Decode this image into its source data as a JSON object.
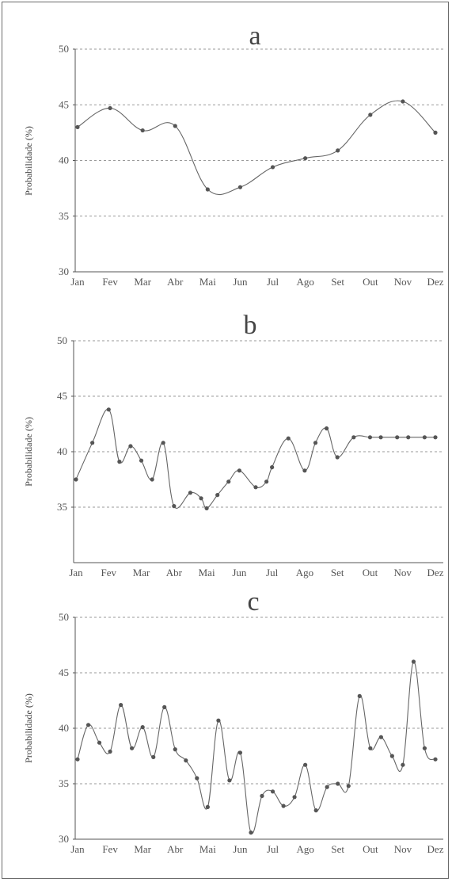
{
  "chart_data": [
    {
      "type": "line",
      "title": "a",
      "ylabel": "Probabilidade (%)",
      "xlabel": "",
      "ylim": [
        30,
        50
      ],
      "yticks": [
        30,
        35,
        40,
        45,
        50
      ],
      "grid": "horizontal dashed",
      "categories": [
        "Jan",
        "Fev",
        "Mar",
        "Abr",
        "Mai",
        "Jun",
        "Jul",
        "Ago",
        "Set",
        "Out",
        "Nov",
        "Dez"
      ],
      "series": [
        {
          "x": [
            0,
            1,
            2,
            3,
            4,
            5,
            6,
            7,
            8,
            9,
            10,
            11
          ],
          "values": [
            43.0,
            44.7,
            42.7,
            43.1,
            37.4,
            37.6,
            39.4,
            40.2,
            40.9,
            44.1,
            45.3,
            42.5
          ]
        }
      ]
    },
    {
      "type": "line",
      "title": "b",
      "ylabel": "Probabilidade (%)",
      "xlabel": "",
      "ylim": [
        30,
        50
      ],
      "yticks": [
        35,
        40,
        45,
        50
      ],
      "grid": "horizontal dashed",
      "categories": [
        "Jan",
        "Fev",
        "Mar",
        "Abr",
        "Mai",
        "Jun",
        "Jul",
        "Ago",
        "Set",
        "Out",
        "Nov",
        "Dez"
      ],
      "series": [
        {
          "x": [
            0,
            0.5,
            1,
            1.33,
            1.67,
            2,
            2.33,
            2.67,
            3,
            3.5,
            3.83,
            4,
            4.33,
            4.67,
            5,
            5.5,
            5.83,
            6,
            6.5,
            7,
            7.33,
            7.67,
            8,
            8.5,
            9,
            9.33,
            9.83,
            10.17,
            10.67,
            11
          ],
          "values": [
            37.5,
            40.8,
            43.8,
            39.1,
            40.5,
            39.2,
            37.5,
            40.8,
            35.1,
            36.3,
            35.8,
            34.9,
            36.1,
            37.3,
            38.3,
            36.8,
            37.3,
            38.6,
            41.2,
            38.3,
            40.8,
            42.1,
            39.5,
            41.3,
            41.3,
            41.3,
            41.3,
            41.3,
            41.3,
            41.3
          ]
        }
      ]
    },
    {
      "type": "line",
      "title": "c",
      "ylabel": "Probabilidade (%)",
      "xlabel": "",
      "ylim": [
        30,
        50
      ],
      "yticks": [
        30,
        35,
        40,
        45,
        50
      ],
      "grid": "horizontal dashed",
      "categories": [
        "Jan",
        "Fev",
        "Mar",
        "Abr",
        "Mai",
        "Jun",
        "Jul",
        "Ago",
        "Set",
        "Out",
        "Nov",
        "Dez"
      ],
      "series": [
        {
          "x": [
            0,
            0.33,
            0.67,
            1,
            1.33,
            1.67,
            2,
            2.33,
            2.67,
            3,
            3.33,
            3.67,
            4,
            4.33,
            4.67,
            5,
            5.33,
            5.67,
            6,
            6.33,
            6.67,
            7,
            7.33,
            7.67,
            8,
            8.33,
            8.67,
            9,
            9.33,
            9.67,
            10,
            10.33,
            10.67,
            11
          ],
          "values": [
            37.2,
            40.3,
            38.7,
            37.9,
            42.1,
            38.2,
            40.1,
            37.4,
            41.9,
            38.1,
            37.1,
            35.5,
            32.9,
            40.7,
            35.3,
            37.8,
            30.6,
            33.9,
            34.3,
            33.0,
            33.8,
            36.7,
            32.6,
            34.7,
            35.0,
            34.8,
            42.9,
            38.2,
            39.2,
            37.5,
            36.7,
            46.0,
            38.2,
            37.2
          ]
        }
      ]
    }
  ]
}
